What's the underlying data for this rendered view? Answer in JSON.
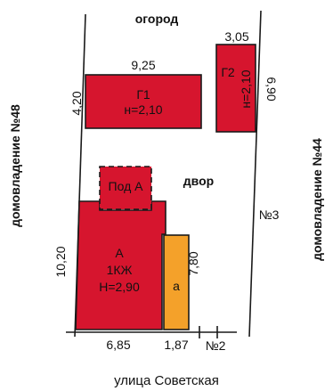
{
  "colors": {
    "building": "#d6152e",
    "annex": "#f4a12a",
    "line": "#1a1a1a"
  },
  "top_label": "огород",
  "street_label": "улица Советская",
  "left_neighbor": "домовладение №48",
  "right_neighbor": "домовладение №44",
  "yard_label": "двор",
  "number_3": "№3",
  "number_2": "№2",
  "g1": {
    "name": "Г1",
    "height": "н=2,10",
    "width_dim": "9,25",
    "depth_dim": "4,20"
  },
  "g2": {
    "name": "Г2",
    "height": "н=2,10",
    "width_dim": "3,05",
    "depth_dim": "6,90"
  },
  "cellar": {
    "name": "Под А"
  },
  "house": {
    "name": "А",
    "type": "1КЖ",
    "height": "Н=2,90",
    "width_dim": "6,85",
    "depth_dim": "10,20"
  },
  "annex": {
    "name": "а",
    "width_dim": "1,87",
    "depth_dim": "7,80"
  }
}
